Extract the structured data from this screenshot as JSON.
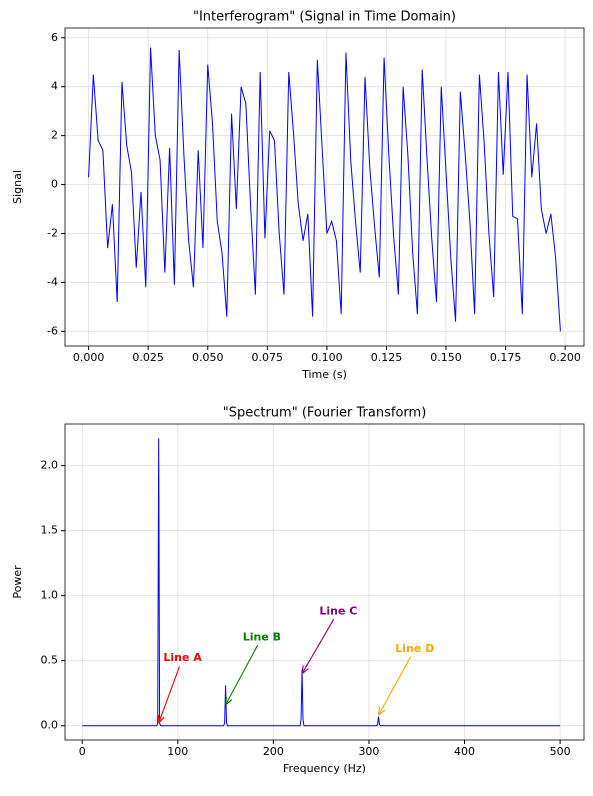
{
  "chart_data": [
    {
      "type": "line",
      "title": "\"Interferogram\" (Signal in Time Domain)",
      "x_label": "Time (s)",
      "y_label": "Signal",
      "color": "#0000ff",
      "grid": true,
      "x": [
        0,
        0.002,
        0.004,
        0.006,
        0.008,
        0.01,
        0.012,
        0.014,
        0.016,
        0.018,
        0.02,
        0.022,
        0.024,
        0.026,
        0.028,
        0.03,
        0.032,
        0.034,
        0.036,
        0.038,
        0.04,
        0.042,
        0.044,
        0.046,
        0.048,
        0.05,
        0.052,
        0.054,
        0.056,
        0.058,
        0.06,
        0.062,
        0.064,
        0.066,
        0.068,
        0.07,
        0.072,
        0.074,
        0.076,
        0.078,
        0.08,
        0.082,
        0.084,
        0.086,
        0.088,
        0.09,
        0.092,
        0.094,
        0.096,
        0.098,
        0.1,
        0.102,
        0.104,
        0.106,
        0.108,
        0.11,
        0.112,
        0.114,
        0.116,
        0.118,
        0.12,
        0.122,
        0.124,
        0.126,
        0.128,
        0.13,
        0.132,
        0.134,
        0.136,
        0.138,
        0.14,
        0.142,
        0.144,
        0.146,
        0.148,
        0.15,
        0.152,
        0.154,
        0.156,
        0.158,
        0.16,
        0.162,
        0.164,
        0.166,
        0.168,
        0.17,
        0.172,
        0.174,
        0.176,
        0.178,
        0.18,
        0.182,
        0.184,
        0.186,
        0.188,
        0.19,
        0.192,
        0.194,
        0.196,
        0.198
      ],
      "values": [
        0.3,
        4.5,
        1.8,
        1.4,
        -2.6,
        -0.8,
        -4.8,
        4.2,
        1.6,
        0.5,
        -3.4,
        -0.3,
        -4.2,
        5.6,
        2.0,
        1.0,
        -3.6,
        1.5,
        -4.1,
        5.5,
        1.2,
        -2.3,
        -4.2,
        1.4,
        -2.6,
        4.9,
        2.5,
        -1.5,
        -2.8,
        -5.4,
        2.9,
        -1.0,
        4.0,
        3.3,
        -0.9,
        -4.5,
        4.6,
        -2.2,
        2.2,
        1.8,
        -2.0,
        -4.5,
        4.6,
        2.1,
        -0.8,
        -2.3,
        -1.2,
        -5.4,
        5.1,
        1.5,
        -2.0,
        -1.5,
        -2.3,
        -5.3,
        5.4,
        1.0,
        -1.5,
        -3.6,
        4.4,
        0.7,
        -1.7,
        -3.8,
        5.2,
        1.2,
        -2.1,
        -4.5,
        4.0,
        1.2,
        -2.8,
        -5.3,
        4.7,
        1.1,
        -2.2,
        -4.8,
        4.0,
        0.5,
        -3.0,
        -5.6,
        3.8,
        1.3,
        -1.5,
        -5.3,
        4.5,
        1.7,
        -2.0,
        -4.6,
        4.6,
        0.4,
        4.6,
        -1.3,
        -1.4,
        -5.3,
        4.5,
        0.3,
        2.5,
        -1.0,
        -2.0,
        -1.2,
        -3.0,
        -6.0
      ],
      "xlim": [
        -0.0099,
        0.2079
      ],
      "ylim": [
        -6.6,
        6.4
      ],
      "xticks": [
        {
          "value": 0,
          "label": "0.000"
        },
        {
          "value": 0.025,
          "label": "0.025"
        },
        {
          "value": 0.05,
          "label": "0.050"
        },
        {
          "value": 0.075,
          "label": "0.075"
        },
        {
          "value": 0.1,
          "label": "0.100"
        },
        {
          "value": 0.125,
          "label": "0.125"
        },
        {
          "value": 0.15,
          "label": "0.150"
        },
        {
          "value": 0.175,
          "label": "0.175"
        },
        {
          "value": 0.2,
          "label": "0.200"
        }
      ],
      "yticks": [
        -6,
        -4,
        -2,
        0,
        2,
        4,
        6
      ]
    },
    {
      "type": "line",
      "title": "\"Spectrum\" (Fourier Transform)",
      "x_label": "Frequency (Hz)",
      "y_label": "Power",
      "color": "#0000ff",
      "grid": true,
      "x": [
        0,
        78,
        79,
        80,
        81,
        82,
        148,
        149,
        150,
        151,
        152,
        228,
        229,
        230,
        231,
        232,
        308,
        309,
        310,
        311,
        312,
        500
      ],
      "values": [
        0,
        0,
        0.02,
        2.21,
        0.02,
        0,
        0,
        0.02,
        0.31,
        0.02,
        0,
        0,
        0.05,
        0.43,
        0.05,
        0,
        0,
        0.01,
        0.07,
        0.01,
        0,
        0
      ],
      "xlim": [
        -18,
        525
      ],
      "ylim": [
        -0.11,
        2.32
      ],
      "xticks": [
        0,
        100,
        200,
        300,
        400,
        500
      ],
      "yticks": [
        {
          "value": 0,
          "label": "0.0"
        },
        {
          "value": 0.5,
          "label": "0.5"
        },
        {
          "value": 1,
          "label": "1.0"
        },
        {
          "value": 1.5,
          "label": "1.5"
        },
        {
          "value": 2,
          "label": "2.0"
        }
      ],
      "annotations": [
        {
          "text": "Line A",
          "color": "#ff0000",
          "x": 80,
          "y": 0.02,
          "text_x": 105,
          "text_y": 0.52
        },
        {
          "text": "Line B",
          "color": "#008000",
          "x": 150,
          "y": 0.16,
          "text_x": 188,
          "text_y": 0.68
        },
        {
          "text": "Line C",
          "color": "#800080",
          "x": 230,
          "y": 0.4,
          "text_x": 268,
          "text_y": 0.88
        },
        {
          "text": "Line D",
          "color": "#ffa500",
          "x": 310,
          "y": 0.08,
          "text_x": 348,
          "text_y": 0.59
        }
      ]
    }
  ]
}
